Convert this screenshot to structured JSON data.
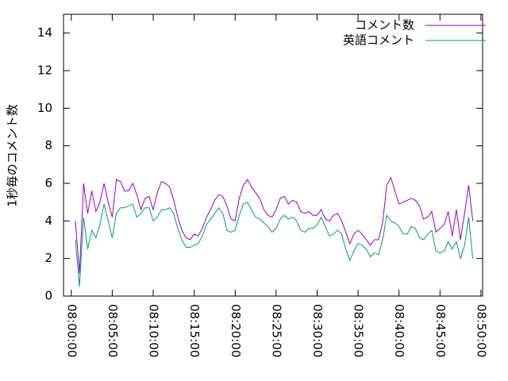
{
  "chart_data": {
    "type": "line",
    "ylabel": "1秒毎のコメント数",
    "x": [
      "08:00:30",
      "08:01:00",
      "08:01:30",
      "08:02:00",
      "08:02:30",
      "08:03:00",
      "08:03:30",
      "08:04:00",
      "08:04:30",
      "08:05:00",
      "08:05:30",
      "08:06:00",
      "08:06:30",
      "08:07:00",
      "08:07:30",
      "08:08:00",
      "08:08:30",
      "08:09:00",
      "08:09:30",
      "08:10:00",
      "08:10:30",
      "08:11:00",
      "08:11:30",
      "08:12:00",
      "08:12:30",
      "08:13:00",
      "08:13:30",
      "08:14:00",
      "08:14:30",
      "08:15:00",
      "08:15:30",
      "08:16:00",
      "08:16:30",
      "08:17:00",
      "08:17:30",
      "08:18:00",
      "08:18:30",
      "08:19:00",
      "08:19:30",
      "08:20:00",
      "08:20:30",
      "08:21:00",
      "08:21:30",
      "08:22:00",
      "08:22:30",
      "08:23:00",
      "08:23:30",
      "08:24:00",
      "08:24:30",
      "08:25:00",
      "08:25:30",
      "08:26:00",
      "08:26:30",
      "08:27:00",
      "08:27:30",
      "08:28:00",
      "08:28:30",
      "08:29:00",
      "08:29:30",
      "08:30:00",
      "08:30:30",
      "08:31:00",
      "08:31:30",
      "08:32:00",
      "08:32:30",
      "08:33:00",
      "08:33:30",
      "08:34:00",
      "08:34:30",
      "08:35:00",
      "08:35:30",
      "08:36:00",
      "08:36:30",
      "08:37:00",
      "08:37:30",
      "08:38:00",
      "08:38:30",
      "08:39:00",
      "08:39:30",
      "08:40:00",
      "08:40:30",
      "08:41:00",
      "08:41:30",
      "08:42:00",
      "08:42:30",
      "08:43:00",
      "08:43:30",
      "08:44:00",
      "08:44:30",
      "08:45:00",
      "08:45:30",
      "08:46:00",
      "08:46:30",
      "08:47:00",
      "08:47:30",
      "08:48:00",
      "08:48:30",
      "08:49:00"
    ],
    "series": [
      {
        "name": "コメント数",
        "color": "#9400d3",
        "values": [
          4.0,
          1.2,
          6.0,
          4.4,
          5.6,
          4.5,
          5.0,
          6.0,
          5.0,
          4.2,
          6.2,
          6.1,
          5.6,
          5.6,
          6.0,
          5.4,
          4.6,
          5.2,
          5.3,
          4.6,
          5.5,
          6.1,
          6.0,
          5.8,
          5.1,
          4.2,
          3.5,
          3.1,
          3.0,
          3.3,
          3.2,
          3.6,
          4.2,
          4.6,
          5.1,
          5.4,
          5.3,
          4.8,
          4.1,
          4.0,
          5.2,
          5.9,
          6.2,
          5.8,
          5.5,
          5.2,
          4.6,
          4.3,
          4.2,
          4.6,
          5.2,
          5.3,
          4.9,
          5.1,
          5.0,
          4.5,
          4.4,
          4.5,
          4.3,
          4.3,
          4.6,
          4.1,
          4.0,
          4.3,
          4.4,
          4.0,
          3.4,
          2.8,
          3.3,
          3.5,
          3.3,
          3.0,
          2.7,
          3.0,
          3.0,
          3.9,
          5.9,
          6.3,
          5.6,
          4.9,
          5.0,
          5.1,
          5.2,
          5.1,
          4.8,
          4.1,
          4.2,
          4.5,
          3.4,
          3.6,
          3.8,
          4.5,
          3.2,
          4.6,
          3.0,
          4.4,
          5.9,
          4.0
        ]
      },
      {
        "name": "英語コメント",
        "color": "#009e73",
        "values": [
          3.0,
          0.5,
          4.2,
          2.5,
          3.5,
          3.1,
          3.8,
          4.9,
          4.0,
          3.1,
          4.4,
          4.7,
          4.7,
          4.8,
          4.9,
          4.2,
          4.4,
          4.7,
          4.7,
          4.0,
          4.2,
          4.6,
          4.6,
          4.7,
          4.4,
          3.6,
          3.0,
          2.6,
          2.6,
          2.7,
          2.8,
          3.2,
          3.8,
          4.1,
          4.4,
          4.7,
          4.4,
          3.5,
          3.4,
          3.5,
          4.3,
          4.9,
          5.0,
          4.6,
          4.2,
          4.1,
          3.9,
          3.7,
          3.4,
          3.6,
          4.1,
          4.3,
          4.1,
          4.2,
          4.0,
          3.5,
          3.4,
          3.6,
          3.6,
          3.8,
          4.2,
          3.7,
          3.2,
          3.3,
          3.5,
          3.3,
          2.5,
          1.9,
          2.4,
          2.8,
          2.7,
          2.5,
          2.1,
          2.3,
          2.2,
          3.0,
          4.3,
          4.0,
          3.9,
          3.7,
          3.3,
          3.3,
          3.7,
          3.6,
          3.1,
          3.0,
          3.3,
          3.5,
          2.4,
          2.3,
          2.4,
          2.9,
          2.5,
          2.9,
          2.0,
          2.7,
          4.2,
          2.0
        ]
      }
    ],
    "xlim": [
      "07:59:03",
      "08:50:12"
    ],
    "xticks": [
      "08:00:00",
      "08:05:00",
      "08:10:00",
      "08:15:00",
      "08:20:00",
      "08:25:00",
      "08:30:00",
      "08:35:00",
      "08:40:00",
      "08:45:00",
      "08:50:00"
    ],
    "ylim": [
      0,
      15
    ],
    "yticks": [
      0,
      2,
      4,
      6,
      8,
      10,
      12,
      14
    ],
    "grid": false,
    "legend": "top-right"
  }
}
